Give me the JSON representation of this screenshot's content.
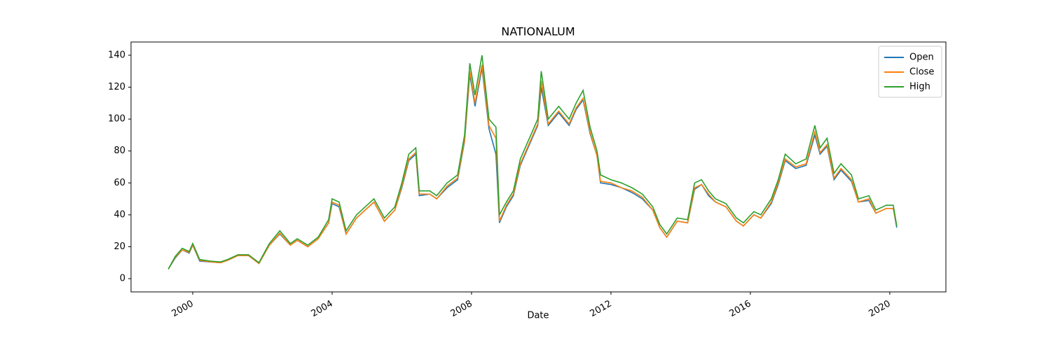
{
  "chart_data": {
    "type": "line",
    "title": "NATIONALUM",
    "x_label": "Date",
    "x": [
      1999.3,
      1999.5,
      1999.7,
      1999.9,
      2000.0,
      2000.2,
      2000.5,
      2000.8,
      2001.0,
      2001.3,
      2001.6,
      2001.9,
      2002.2,
      2002.5,
      2002.8,
      2003.0,
      2003.3,
      2003.6,
      2003.9,
      2004.0,
      2004.2,
      2004.4,
      2004.7,
      2005.0,
      2005.2,
      2005.5,
      2005.8,
      2006.0,
      2006.2,
      2006.4,
      2006.5,
      2006.8,
      2007.0,
      2007.3,
      2007.6,
      2007.8,
      2007.95,
      2008.1,
      2008.3,
      2008.5,
      2008.7,
      2008.8,
      2009.0,
      2009.2,
      2009.4,
      2009.6,
      2009.9,
      2010.0,
      2010.2,
      2010.5,
      2010.8,
      2011.0,
      2011.2,
      2011.4,
      2011.6,
      2011.7,
      2012.0,
      2012.3,
      2012.6,
      2012.9,
      2013.2,
      2013.4,
      2013.6,
      2013.9,
      2014.2,
      2014.4,
      2014.6,
      2014.8,
      2015.0,
      2015.3,
      2015.6,
      2015.8,
      2016.1,
      2016.3,
      2016.6,
      2016.8,
      2017.0,
      2017.3,
      2017.6,
      2017.85,
      2018.0,
      2018.2,
      2018.4,
      2018.6,
      2018.9,
      2019.1,
      2019.4,
      2019.6,
      2019.9,
      2020.1,
      2020.2
    ],
    "series": [
      {
        "name": "Open",
        "color": "#1f77b4",
        "values": [
          6,
          13,
          18,
          16,
          21,
          11,
          10.5,
          10,
          11.5,
          14.5,
          14.5,
          9.5,
          21,
          28,
          21,
          24,
          20,
          25,
          35,
          47,
          45,
          28,
          38,
          44,
          48,
          36,
          43,
          57,
          74,
          78,
          52,
          53,
          50,
          57,
          62,
          86,
          128,
          108,
          132,
          94,
          78,
          35,
          45,
          52,
          71,
          81,
          96,
          120,
          96,
          104,
          96,
          106,
          112,
          91,
          77,
          60,
          59,
          57,
          54,
          50,
          43,
          32,
          26,
          36,
          35,
          56,
          59,
          52,
          48,
          45,
          36,
          33,
          40,
          38,
          47,
          59,
          74,
          69,
          71,
          90,
          78,
          83,
          62,
          68,
          61,
          48,
          49,
          41,
          44,
          44,
          32
        ]
      },
      {
        "name": "Close",
        "color": "#ff7f0e",
        "values": [
          6,
          13.5,
          18,
          16.5,
          21,
          11.5,
          10.5,
          10,
          11.5,
          14.5,
          14.5,
          9.5,
          21,
          28.5,
          21,
          24,
          20,
          25,
          35,
          48,
          46,
          28,
          38,
          44,
          48,
          36,
          43,
          58,
          75,
          79,
          53,
          53,
          50,
          58,
          63,
          87,
          130,
          110,
          134,
          96,
          88,
          36,
          46,
          53,
          72,
          82,
          97,
          124,
          97,
          105,
          97,
          107,
          113,
          92,
          77,
          61,
          60,
          57,
          55,
          51,
          43,
          32,
          26,
          36,
          35,
          57,
          59,
          53,
          48,
          45,
          36,
          33,
          40,
          38,
          48,
          60,
          75,
          70,
          72,
          92,
          79,
          84,
          63,
          69,
          62,
          48,
          50,
          41,
          44,
          44,
          33
        ]
      },
      {
        "name": "High",
        "color": "#2ca02c",
        "values": [
          6,
          14,
          19,
          17,
          22,
          12,
          11,
          10.5,
          12,
          15,
          15,
          10,
          22,
          30,
          22,
          25,
          21,
          26,
          37,
          50,
          48,
          30,
          40,
          46,
          50,
          38,
          45,
          60,
          78,
          82,
          55,
          55,
          52,
          60,
          65,
          90,
          135,
          115,
          140,
          100,
          95,
          40,
          48,
          55,
          75,
          85,
          100,
          130,
          100,
          108,
          100,
          110,
          118,
          95,
          80,
          65,
          62,
          60,
          57,
          53,
          45,
          34,
          28,
          38,
          37,
          60,
          62,
          55,
          50,
          47,
          38,
          35,
          42,
          40,
          50,
          62,
          78,
          72,
          75,
          96,
          82,
          88,
          66,
          72,
          65,
          50,
          52,
          43,
          46,
          46,
          33
        ]
      }
    ],
    "xlim": [
      1998.23,
      2021.61
    ],
    "xticks": [
      2000,
      2004,
      2008,
      2012,
      2016,
      2020
    ],
    "ylim": [
      -8.3,
      148.3
    ],
    "yticks": [
      0,
      20,
      40,
      60,
      80,
      100,
      120,
      140
    ],
    "legend": "upper right"
  }
}
